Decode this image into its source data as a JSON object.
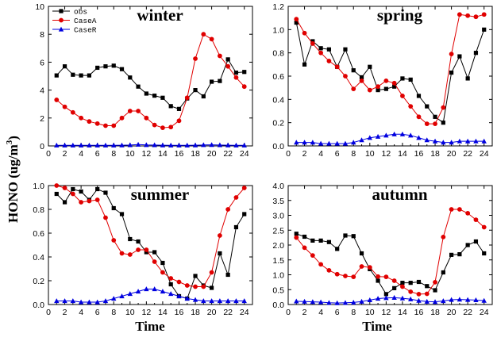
{
  "figure": {
    "ylabel": "HONO (ug/m",
    "ylabel_sup": "3",
    "ylabel_end": ")",
    "xlabel": "Time"
  },
  "legend": {
    "panel": "winter",
    "entries": [
      {
        "name": "obs",
        "color": "#000000",
        "marker": "square"
      },
      {
        "name": "CaseA",
        "color": "#e00000",
        "marker": "circle"
      },
      {
        "name": "CaseR",
        "color": "#0000e0",
        "marker": "triangle"
      }
    ]
  },
  "chart_data": [
    {
      "type": "line",
      "title": "winter",
      "xlim": [
        0,
        25
      ],
      "ylim": [
        0,
        10
      ],
      "xticks": [
        0,
        2,
        4,
        6,
        8,
        10,
        12,
        14,
        16,
        18,
        20,
        22,
        24
      ],
      "yticks": [
        0,
        2,
        4,
        6,
        8,
        10
      ],
      "ytick_labels": [
        "0",
        "2",
        "4",
        "6",
        "8",
        "10"
      ],
      "x": [
        1,
        2,
        3,
        4,
        5,
        6,
        7,
        8,
        9,
        10,
        11,
        12,
        13,
        14,
        15,
        16,
        17,
        18,
        19,
        20,
        21,
        22,
        23,
        24
      ],
      "series": [
        {
          "name": "obs",
          "values": [
            5.05,
            5.7,
            5.1,
            5.05,
            5.05,
            5.6,
            5.7,
            5.75,
            5.5,
            4.9,
            4.25,
            3.75,
            3.6,
            3.45,
            2.85,
            2.65,
            3.4,
            4.0,
            3.55,
            4.6,
            4.65,
            6.2,
            5.25,
            5.3
          ]
        },
        {
          "name": "CaseA",
          "values": [
            3.3,
            2.8,
            2.4,
            2.0,
            1.75,
            1.6,
            1.45,
            1.45,
            2.0,
            2.5,
            2.5,
            2.0,
            1.5,
            1.3,
            1.35,
            1.8,
            3.45,
            6.25,
            8.0,
            7.65,
            6.45,
            5.7,
            4.9,
            4.25
          ]
        },
        {
          "name": "CaseR",
          "values": [
            0.04,
            0.04,
            0.04,
            0.04,
            0.04,
            0.04,
            0.04,
            0.04,
            0.05,
            0.06,
            0.1,
            0.07,
            0.06,
            0.05,
            0.04,
            0.04,
            0.04,
            0.05,
            0.07,
            0.08,
            0.06,
            0.05,
            0.04,
            0.04
          ]
        }
      ]
    },
    {
      "type": "line",
      "title": "spring",
      "xlim": [
        0,
        25
      ],
      "ylim": [
        0,
        1.2
      ],
      "xticks": [
        0,
        2,
        4,
        6,
        8,
        10,
        12,
        14,
        16,
        18,
        20,
        22,
        24
      ],
      "yticks": [
        0,
        0.2,
        0.4,
        0.6,
        0.8,
        1.0,
        1.2
      ],
      "ytick_labels": [
        "0.0",
        "0.2",
        "0.4",
        "0.6",
        "0.8",
        "1.0",
        "1.2"
      ],
      "x": [
        1,
        2,
        3,
        4,
        5,
        6,
        7,
        8,
        9,
        10,
        11,
        12,
        13,
        14,
        15,
        16,
        17,
        18,
        19,
        20,
        21,
        22,
        23,
        24
      ],
      "series": [
        {
          "name": "obs",
          "values": [
            1.06,
            0.7,
            0.9,
            0.84,
            0.83,
            0.68,
            0.83,
            0.65,
            0.59,
            0.68,
            0.48,
            0.49,
            0.51,
            0.58,
            0.57,
            0.43,
            0.34,
            0.25,
            0.2,
            0.63,
            0.77,
            0.58,
            0.8,
            1.0
          ]
        },
        {
          "name": "CaseA",
          "values": [
            1.09,
            0.97,
            0.88,
            0.8,
            0.73,
            0.68,
            0.6,
            0.49,
            0.56,
            0.48,
            0.51,
            0.56,
            0.54,
            0.43,
            0.34,
            0.25,
            0.19,
            0.19,
            0.33,
            0.79,
            1.13,
            1.12,
            1.11,
            1.13
          ]
        },
        {
          "name": "CaseR",
          "values": [
            0.03,
            0.03,
            0.03,
            0.02,
            0.02,
            0.02,
            0.02,
            0.03,
            0.05,
            0.07,
            0.08,
            0.09,
            0.1,
            0.1,
            0.09,
            0.07,
            0.05,
            0.04,
            0.03,
            0.03,
            0.04,
            0.04,
            0.04,
            0.04
          ]
        }
      ]
    },
    {
      "type": "line",
      "title": "summer",
      "xlim": [
        0,
        25
      ],
      "ylim": [
        0,
        1.0
      ],
      "xticks": [
        0,
        2,
        4,
        6,
        8,
        10,
        12,
        14,
        16,
        18,
        20,
        22,
        24
      ],
      "yticks": [
        0,
        0.2,
        0.4,
        0.6,
        0.8,
        1.0
      ],
      "ytick_labels": [
        "0.0",
        "0.2",
        "0.4",
        "0.6",
        "0.8",
        "1.0"
      ],
      "x": [
        1,
        2,
        3,
        4,
        5,
        6,
        7,
        8,
        9,
        10,
        11,
        12,
        13,
        14,
        15,
        16,
        17,
        18,
        19,
        20,
        21,
        22,
        23,
        24
      ],
      "series": [
        {
          "name": "obs",
          "values": [
            0.93,
            0.86,
            0.97,
            0.95,
            0.88,
            0.97,
            0.94,
            0.81,
            0.76,
            0.55,
            0.53,
            0.44,
            0.44,
            0.35,
            0.17,
            0.07,
            0.05,
            0.24,
            0.16,
            0.14,
            0.43,
            0.25,
            0.65,
            0.76
          ]
        },
        {
          "name": "CaseA",
          "values": [
            1.0,
            0.98,
            0.93,
            0.86,
            0.87,
            0.88,
            0.73,
            0.54,
            0.43,
            0.42,
            0.46,
            0.46,
            0.36,
            0.27,
            0.22,
            0.19,
            0.16,
            0.15,
            0.15,
            0.27,
            0.58,
            0.8,
            0.9,
            0.98
          ]
        },
        {
          "name": "CaseR",
          "values": [
            0.03,
            0.03,
            0.03,
            0.02,
            0.02,
            0.02,
            0.03,
            0.05,
            0.07,
            0.09,
            0.11,
            0.13,
            0.13,
            0.11,
            0.09,
            0.07,
            0.05,
            0.04,
            0.03,
            0.03,
            0.03,
            0.03,
            0.03,
            0.03
          ]
        }
      ]
    },
    {
      "type": "line",
      "title": "autumn",
      "xlim": [
        0,
        25
      ],
      "ylim": [
        0,
        4.0
      ],
      "xticks": [
        0,
        2,
        4,
        6,
        8,
        10,
        12,
        14,
        16,
        18,
        20,
        22,
        24
      ],
      "yticks": [
        0,
        0.5,
        1.0,
        1.5,
        2.0,
        2.5,
        3.0,
        3.5,
        4.0
      ],
      "ytick_labels": [
        "0.0",
        "0.5",
        "1.0",
        "1.5",
        "2.0",
        "2.5",
        "3.0",
        "3.5",
        "4.0"
      ],
      "x": [
        1,
        2,
        3,
        4,
        5,
        6,
        7,
        8,
        9,
        10,
        11,
        12,
        13,
        14,
        15,
        16,
        17,
        18,
        19,
        20,
        21,
        22,
        23,
        24
      ],
      "series": [
        {
          "name": "obs",
          "values": [
            2.38,
            2.28,
            2.15,
            2.15,
            2.1,
            1.87,
            2.32,
            2.3,
            1.72,
            1.19,
            0.8,
            0.35,
            0.55,
            0.73,
            0.73,
            0.76,
            0.62,
            0.48,
            1.08,
            1.67,
            1.69,
            2.0,
            2.12,
            1.72
          ]
        },
        {
          "name": "CaseA",
          "values": [
            2.25,
            1.91,
            1.65,
            1.35,
            1.15,
            1.02,
            0.96,
            0.93,
            1.28,
            1.25,
            0.94,
            0.93,
            0.8,
            0.6,
            0.43,
            0.35,
            0.36,
            0.75,
            2.27,
            3.2,
            3.2,
            3.07,
            2.85,
            2.6
          ]
        },
        {
          "name": "CaseR",
          "values": [
            0.11,
            0.1,
            0.09,
            0.08,
            0.06,
            0.05,
            0.06,
            0.07,
            0.1,
            0.15,
            0.2,
            0.22,
            0.23,
            0.21,
            0.18,
            0.13,
            0.1,
            0.09,
            0.12,
            0.16,
            0.17,
            0.16,
            0.15,
            0.13
          ]
        }
      ]
    }
  ]
}
